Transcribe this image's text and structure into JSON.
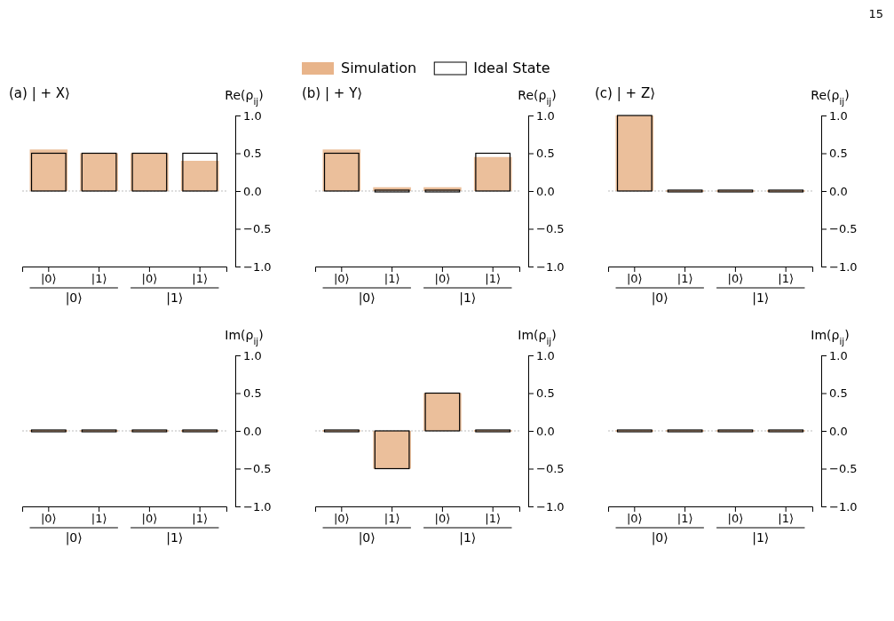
{
  "chart_data": [
    {
      "type": "bar",
      "title": "(a) | + X⟩",
      "ylabel": "Re(ρ$_{ij}$)",
      "categories": [
        "|0⟩",
        "|1⟩",
        "|0⟩",
        "|1⟩"
      ],
      "annotations": [
        "|0⟩",
        "|1⟩",
        "15"
      ],
      "legend": "top",
      "ylim": [
        -1,
        1
      ],
      "yticks": [
        {
          "value": -1,
          "label": "−1.0"
        },
        {
          "value": -0.5,
          "label": "−0.5"
        },
        {
          "value": 0,
          "label": "0.0"
        },
        {
          "value": 0.5,
          "label": "0.5"
        },
        {
          "value": 1,
          "label": "1.0"
        }
      ],
      "series": [
        {
          "name": "Simulation",
          "color": "#e8b48a",
          "values": [
            0.55,
            0.5,
            0.5,
            0.4
          ]
        },
        {
          "name": "Ideal State",
          "color": "#000000",
          "values": [
            0.5,
            0.5,
            0.5,
            0.5
          ]
        }
      ]
    },
    {
      "type": "bar",
      "title": "(b) | + Y⟩",
      "ylabel": "Re(ρ$_{ij}$)",
      "categories": [
        "|0⟩",
        "|1⟩",
        "|0⟩",
        "|1⟩"
      ],
      "annotations": [
        "|0⟩",
        "|1⟩"
      ],
      "ylim": [
        -1,
        1
      ],
      "yticks": [
        {
          "value": -1,
          "label": "−1.0"
        },
        {
          "value": -0.5,
          "label": "−0.5"
        },
        {
          "value": 0,
          "label": "0.0"
        },
        {
          "value": 0.5,
          "label": "0.5"
        },
        {
          "value": 1,
          "label": "1.0"
        }
      ],
      "series": [
        {
          "color": "#e8b48a",
          "values": [
            0.55,
            0.05,
            0.05,
            0.45
          ]
        },
        {
          "color": "#000000",
          "values": [
            0.5,
            0,
            0,
            0.5
          ]
        }
      ]
    },
    {
      "type": "bar",
      "title": "(c) | + Z⟩",
      "ylabel": "Re(ρ$_{ij}$)",
      "categories": [
        "|0⟩",
        "|1⟩",
        "|0⟩",
        "|1⟩"
      ],
      "annotations": [
        "|0⟩",
        "|1⟩"
      ],
      "ylim": [
        -1,
        1
      ],
      "yticks": [
        {
          "value": -1,
          "label": "−1.0"
        },
        {
          "value": -0.5,
          "label": "−0.5"
        },
        {
          "value": 0,
          "label": "0.0"
        },
        {
          "value": 0.5,
          "label": "0.5"
        },
        {
          "value": 1,
          "label": "1.0"
        }
      ],
      "series": [
        {
          "color": "#e8b48a",
          "values": [
            1,
            0,
            0,
            0
          ]
        },
        {
          "color": "#000000",
          "values": [
            1,
            0,
            0,
            0
          ]
        }
      ]
    },
    {
      "type": "bar",
      "ylabel": "Im(ρ$_{ij}$)",
      "categories": [
        "|0⟩",
        "|1⟩",
        "|0⟩",
        "|1⟩"
      ],
      "annotations": [
        "|0⟩",
        "|1⟩"
      ],
      "ylim": [
        -1,
        1
      ],
      "yticks": [
        {
          "value": -1,
          "label": "−1.0"
        },
        {
          "value": -0.5,
          "label": "−0.5"
        },
        {
          "value": 0,
          "label": "0.0"
        },
        {
          "value": 0.5,
          "label": "0.5"
        },
        {
          "value": 1,
          "label": "1.0"
        }
      ],
      "series": [
        {
          "color": "#e8b48a",
          "values": [
            0,
            0,
            0,
            0
          ]
        },
        {
          "color": "#000000",
          "values": [
            0,
            0,
            0,
            0
          ]
        }
      ]
    },
    {
      "type": "bar",
      "ylabel": "Im(ρ$_{ij}$)",
      "categories": [
        "|0⟩",
        "|1⟩",
        "|0⟩",
        "|1⟩"
      ],
      "annotations": [
        "|0⟩",
        "|1⟩"
      ],
      "ylim": [
        -1,
        1
      ],
      "yticks": [
        {
          "value": -1,
          "label": "−1.0"
        },
        {
          "value": -0.5,
          "label": "−0.5"
        },
        {
          "value": 0,
          "label": "0.0"
        },
        {
          "value": 0.5,
          "label": "0.5"
        },
        {
          "value": 1,
          "label": "1.0"
        }
      ],
      "series": [
        {
          "color": "#e8b48a",
          "values": [
            0,
            -0.5,
            0.5,
            0
          ]
        },
        {
          "color": "#000000",
          "values": [
            0,
            -0.5,
            0.5,
            0
          ]
        }
      ]
    },
    {
      "type": "bar",
      "ylabel": "Im(ρ$_{ij}$)",
      "categories": [
        "|0⟩",
        "|1⟩",
        "|0⟩",
        "|1⟩"
      ],
      "annotations": [
        "|0⟩",
        "|1⟩"
      ],
      "ylim": [
        -1,
        1
      ],
      "yticks": [
        {
          "value": -1,
          "label": "−1.0"
        },
        {
          "value": -0.5,
          "label": "−0.5"
        },
        {
          "value": 0,
          "label": "0.0"
        },
        {
          "value": 0.5,
          "label": "0.5"
        },
        {
          "value": 1,
          "label": "1.0"
        }
      ],
      "series": [
        {
          "color": "#e8b48a",
          "values": [
            0,
            0,
            0,
            0
          ]
        },
        {
          "color": "#000000",
          "values": [
            0,
            0,
            0,
            0
          ]
        }
      ]
    }
  ]
}
